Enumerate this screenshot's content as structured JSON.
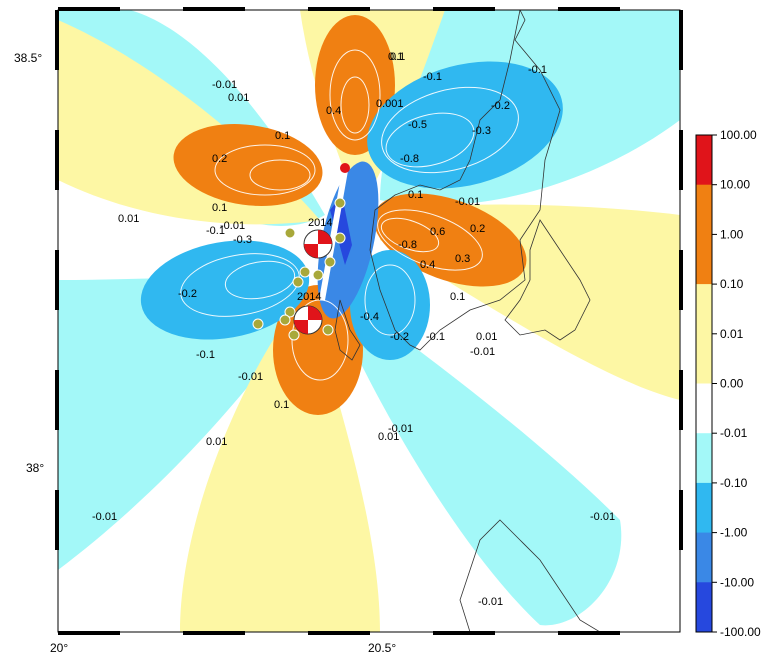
{
  "axes": {
    "lat_labels": [
      "38.5°",
      "38°"
    ],
    "lon_labels": [
      "20°",
      "20.5°"
    ]
  },
  "colorbar": {
    "ticks": [
      "100.00",
      "10.00",
      "1.00",
      "0.10",
      "0.01",
      "0.00",
      "-0.01",
      "-0.10",
      "-1.00",
      "-10.00",
      "-100.00"
    ],
    "colors": [
      "#e0141a",
      "#f08012",
      "#f08012",
      "#fdf7a4",
      "#fdf7a4",
      "#ffffff",
      "#a3f8f8",
      "#30b8f0",
      "#3a88e6",
      "#2648de"
    ]
  },
  "events": {
    "label_1": "2014",
    "label_2": "2014"
  },
  "contour_labels": [
    {
      "id": "c1",
      "text": "-0.01"
    },
    {
      "id": "c2",
      "text": "0.01"
    },
    {
      "id": "c3",
      "text": "0.1"
    },
    {
      "id": "c4",
      "text": "0.2"
    },
    {
      "id": "c5",
      "text": "-0.1"
    },
    {
      "id": "c6",
      "text": "-0.2"
    },
    {
      "id": "c7",
      "text": "-0.3"
    },
    {
      "id": "c8",
      "text": "0.4"
    },
    {
      "id": "c9",
      "text": "0.3"
    },
    {
      "id": "c10",
      "text": "0.5"
    },
    {
      "id": "c11",
      "text": "-0.4"
    },
    {
      "id": "c12",
      "text": "-0.5"
    },
    {
      "id": "c13",
      "text": "0.6"
    },
    {
      "id": "c14",
      "text": "-0.8"
    },
    {
      "id": "c15",
      "text": "0.001"
    }
  ],
  "colors": {
    "orange": "#f08012",
    "blue": "#30b8f0",
    "light_blue": "#a3f8f8",
    "yellow": "#fdf7a4",
    "dark_blue": "#2648de",
    "red": "#e0141a",
    "olive": "#a8a83a"
  }
}
